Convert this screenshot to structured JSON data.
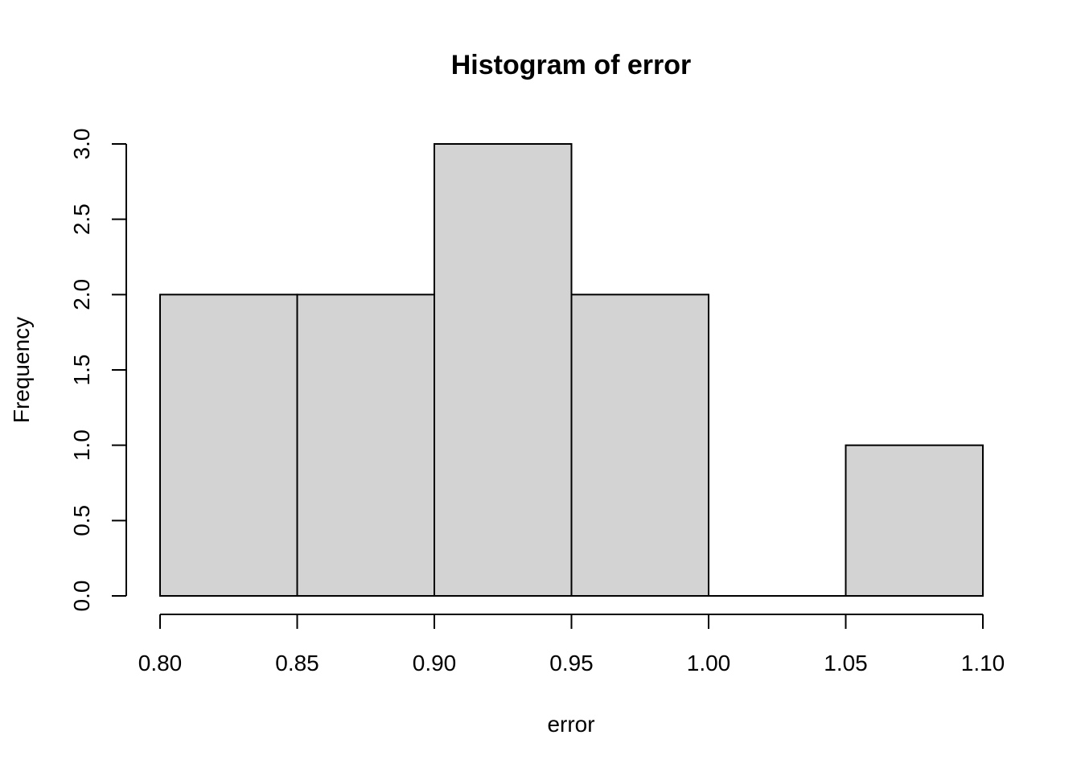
{
  "chart_data": {
    "type": "bar",
    "title": "Histogram of error",
    "xlabel": "error",
    "ylabel": "Frequency",
    "bins": [
      {
        "start": 0.8,
        "end": 0.85,
        "count": 2
      },
      {
        "start": 0.85,
        "end": 0.9,
        "count": 2
      },
      {
        "start": 0.9,
        "end": 0.95,
        "count": 3
      },
      {
        "start": 0.95,
        "end": 1.0,
        "count": 2
      },
      {
        "start": 1.0,
        "end": 1.05,
        "count": 0
      },
      {
        "start": 1.05,
        "end": 1.1,
        "count": 1
      }
    ],
    "xlim": [
      0.8,
      1.1
    ],
    "ylim": [
      0,
      3.0
    ],
    "x_ticks": [
      "0.80",
      "0.85",
      "0.90",
      "0.95",
      "1.00",
      "1.05",
      "1.10"
    ],
    "y_ticks": [
      "0.0",
      "0.5",
      "1.0",
      "1.5",
      "2.0",
      "2.5",
      "3.0"
    ],
    "bar_color": "#d3d3d3",
    "grid": false
  }
}
